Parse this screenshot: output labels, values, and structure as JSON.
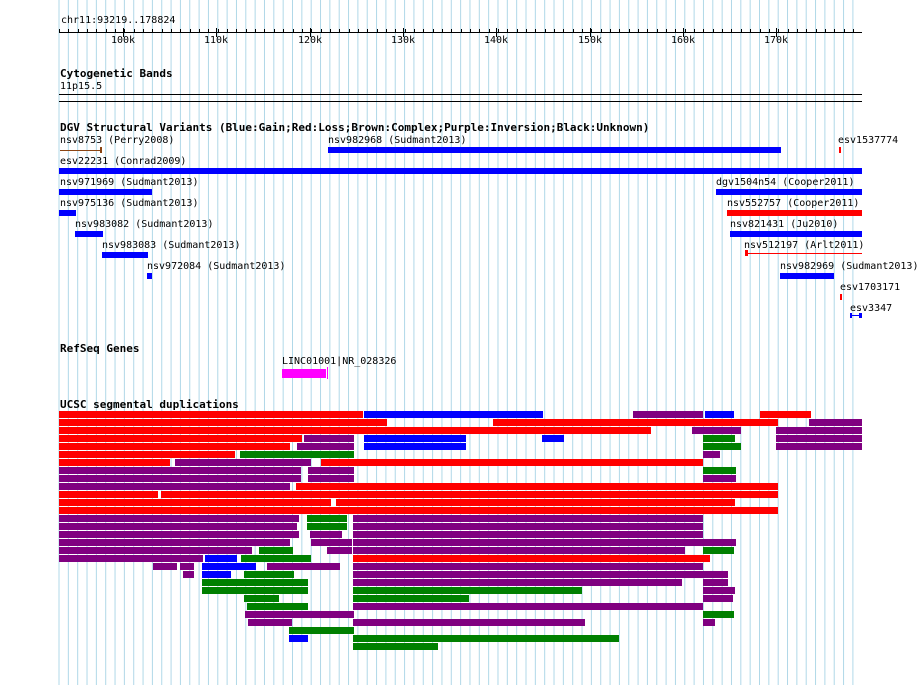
{
  "ruler": {
    "range_label": "chr11:93219..178824",
    "ticks": [
      "100k",
      "110k",
      "120k",
      "130k",
      "140k",
      "150k",
      "160k",
      "170k"
    ]
  },
  "tracks": {
    "cytoband": {
      "title": "Cytogenetic Bands",
      "band": "11p15.5"
    },
    "dgv": {
      "title": "DGV Structural Variants (Blue:Gain;Red:Loss;Brown:Complex;Purple:Inversion;Black:Unknown)",
      "labels": [
        "nsv8753 (Perry2008)",
        "nsv982968 (Sudmant2013)",
        "esv1537774",
        "esv22231 (Conrad2009)",
        "nsv971969 (Sudmant2013)",
        "dgv1504n54 (Cooper2011)",
        "nsv975136 (Sudmant2013)",
        "nsv552757 (Cooper2011)",
        "nsv983082 (Sudmant2013)",
        "nsv821431 (Ju2010)",
        "nsv983083 (Sudmant2013)",
        "nsv512197 (Arlt2011)",
        "nsv972084 (Sudmant2013)",
        "nsv982969 (Sudmant2013)",
        "esv1703171",
        "esv3347"
      ]
    },
    "refseq": {
      "title": "RefSeq Genes",
      "gene_label": "LINC01001|NR_028326"
    },
    "segdup": {
      "title": "UCSC segmental duplications"
    }
  },
  "colors": {
    "gain": "#0000ff",
    "loss": "#ff0000",
    "complex": "#8b4513",
    "inversion": "#800080",
    "segdup_green": "#008000",
    "gene": "#ff00ff",
    "grid": "#b0d8e8"
  }
}
